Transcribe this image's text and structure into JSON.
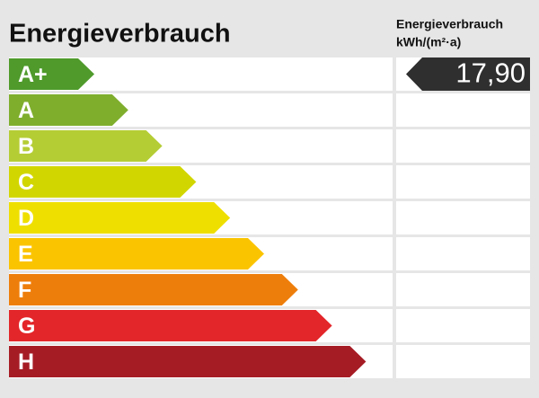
{
  "title": "Energieverbrauch",
  "unit": [
    "Energieverbrauch",
    "kWh/(m²·a)"
  ],
  "classes": [
    {
      "label": "A+",
      "color": "#4f9a2b"
    },
    {
      "label": "A",
      "color": "#7fae2d"
    },
    {
      "label": "B",
      "color": "#b5cd35"
    },
    {
      "label": "C",
      "color": "#d2d600"
    },
    {
      "label": "D",
      "color": "#efdf00"
    },
    {
      "label": "E",
      "color": "#fbc400"
    },
    {
      "label": "F",
      "color": "#ee7e0b"
    },
    {
      "label": "G",
      "color": "#e3262a"
    },
    {
      "label": "H",
      "color": "#a61c25"
    }
  ],
  "value": "17,90"
}
